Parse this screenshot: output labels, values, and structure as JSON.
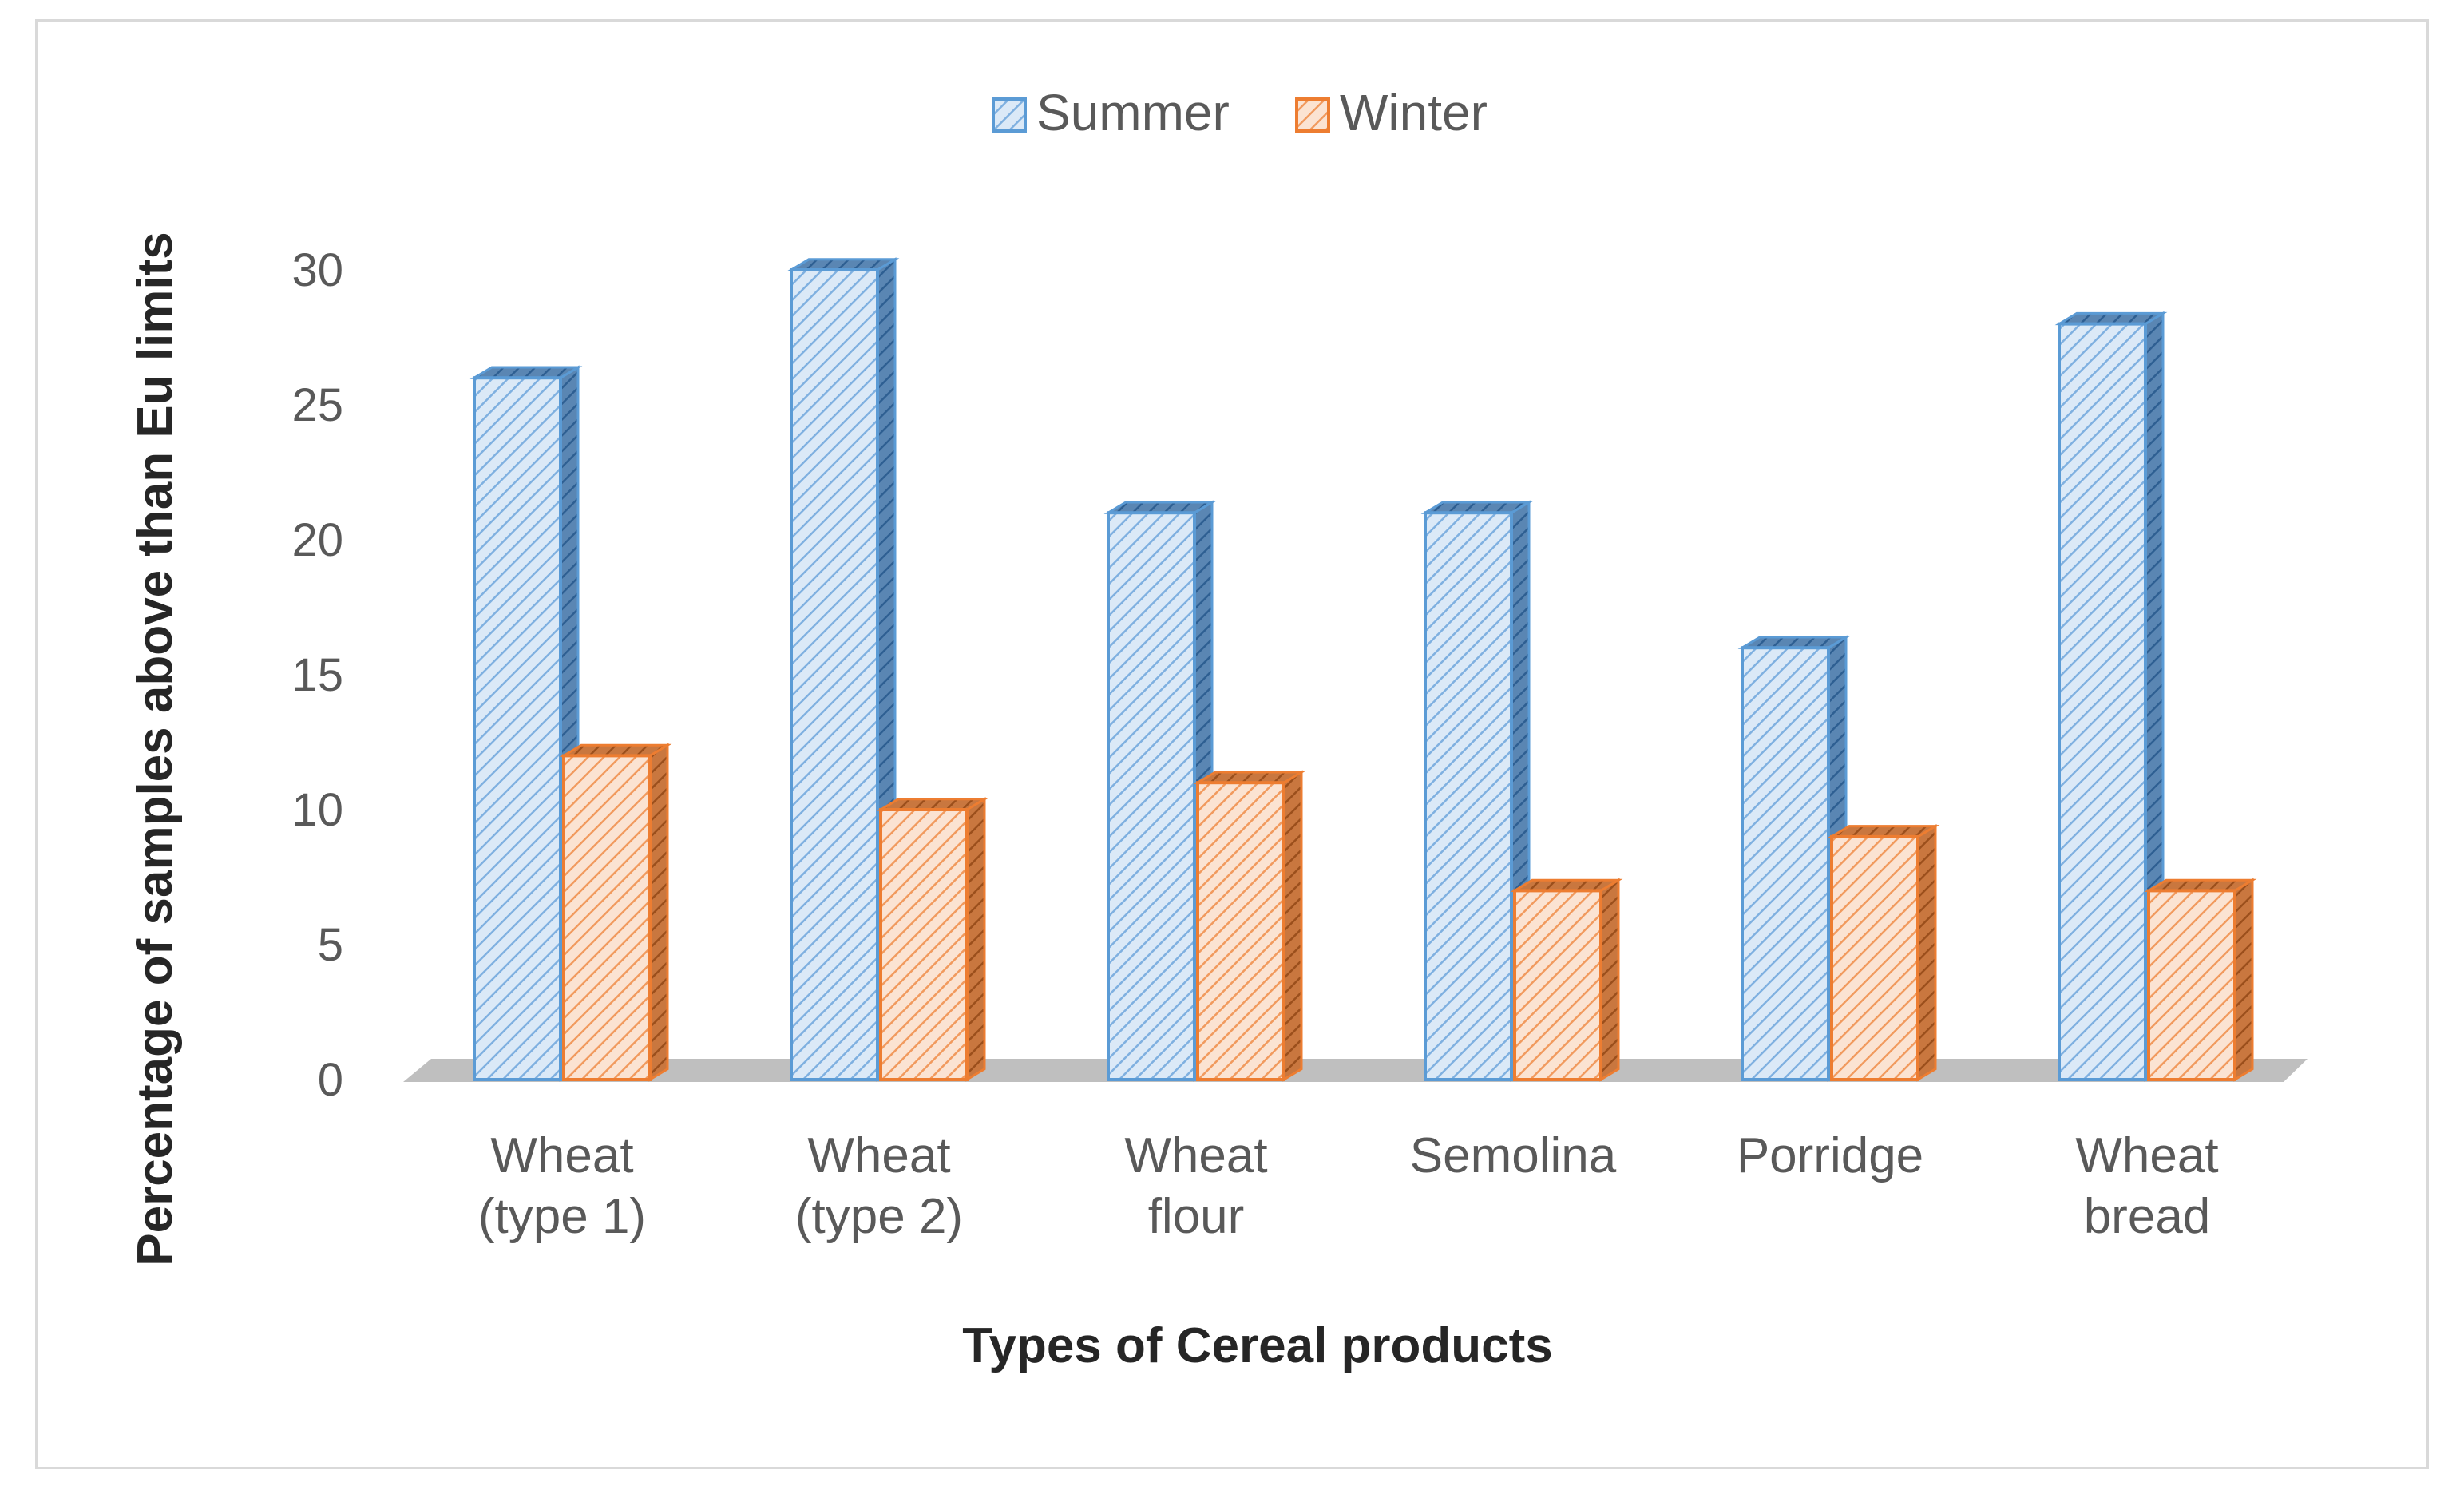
{
  "chart_data": {
    "type": "bar",
    "style": "3d-clustered-column",
    "title": "",
    "xlabel": "Types of Cereal products",
    "ylabel": "Percentage of samples above than Eu limits",
    "categories": [
      [
        "Wheat",
        "(type 1)"
      ],
      [
        "Wheat",
        "(type 2)"
      ],
      [
        "Wheat",
        "flour"
      ],
      [
        "Semolina"
      ],
      [
        "Porridge"
      ],
      [
        "Wheat",
        "bread"
      ]
    ],
    "series": [
      {
        "name": "Summer",
        "values": [
          26,
          30,
          21,
          21,
          16,
          28
        ]
      },
      {
        "name": "Winter",
        "values": [
          12,
          10,
          11,
          7,
          9,
          7
        ]
      }
    ],
    "ylim": [
      0,
      30
    ],
    "yticks": [
      0,
      5,
      10,
      15,
      20,
      25,
      30
    ],
    "legend_position": "top-center",
    "grid": false
  },
  "colors": {
    "summer_stroke": "#5b9bd5",
    "summer_fill": "#dbe9f7",
    "summer_hatch": "#7fb0e0",
    "winter_stroke": "#ed7d31",
    "winter_fill": "#fbe3d2",
    "winter_hatch": "#f19a5e",
    "floor": "#bfbfbf"
  }
}
